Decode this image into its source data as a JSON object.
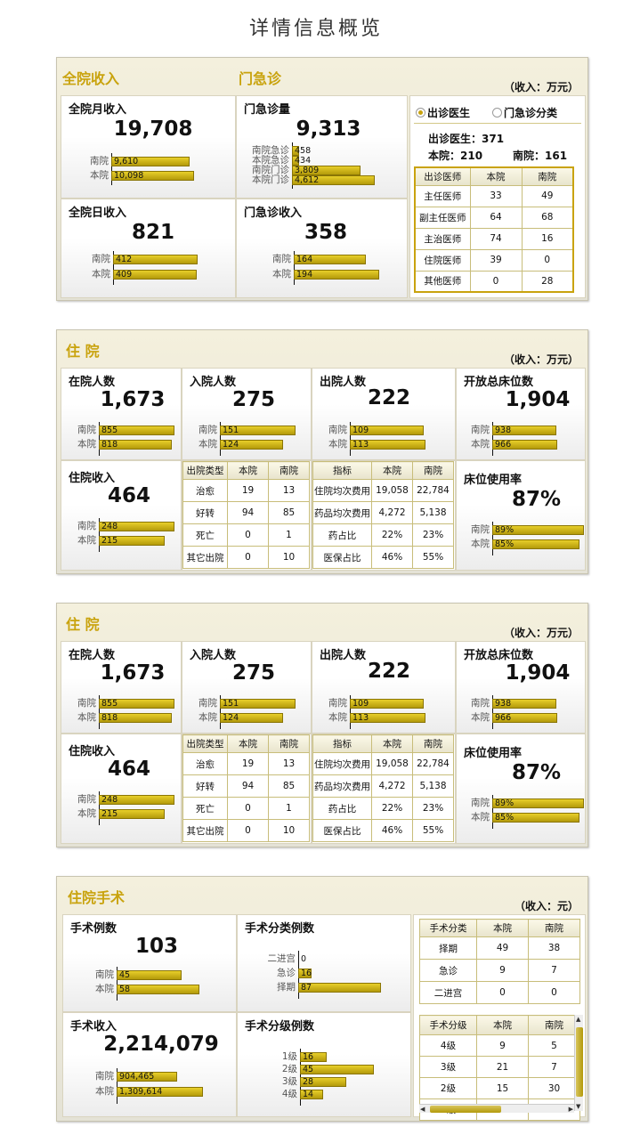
{
  "page_title": "详情信息概览",
  "sec1": {
    "title_total": "全院收入",
    "title_emergency": "门急诊",
    "unit": "（收入：万元）",
    "monthly": {
      "label": "全院月收入",
      "value": "19,708",
      "bars": [
        {
          "name": "南院",
          "value": "9,610",
          "ratio": 0.88
        },
        {
          "name": "本院",
          "value": "10,098",
          "ratio": 0.93
        }
      ]
    },
    "visits": {
      "label": "门急诊量",
      "value": "9,313",
      "bars": [
        {
          "name": "南院急诊",
          "value": "458",
          "ratio": 0.08
        },
        {
          "name": "本院急诊",
          "value": "434",
          "ratio": 0.08
        },
        {
          "name": "南院门诊",
          "value": "3,809",
          "ratio": 0.82
        },
        {
          "name": "本院门诊",
          "value": "4,612",
          "ratio": 0.99
        }
      ]
    },
    "daily": {
      "label": "全院日收入",
      "value": "821",
      "bars": [
        {
          "name": "南院",
          "value": "412",
          "ratio": 0.99
        },
        {
          "name": "本院",
          "value": "409",
          "ratio": 0.98
        }
      ]
    },
    "em_income": {
      "label": "门急诊收入",
      "value": "358",
      "bars": [
        {
          "name": "南院",
          "value": "164",
          "ratio": 0.83
        },
        {
          "name": "本院",
          "value": "194",
          "ratio": 0.98
        }
      ]
    },
    "radio1": "出诊医生",
    "radio2": "门急诊分类",
    "doctor_total": "出诊医生：371",
    "doctor_ben": "本院：210",
    "doctor_nan": "南院：161",
    "doctor_table": {
      "headers": [
        "出诊医师",
        "本院",
        "南院"
      ],
      "rows": [
        [
          "主任医师",
          "33",
          "49"
        ],
        [
          "副主任医师",
          "64",
          "68"
        ],
        [
          "主治医师",
          "74",
          "16"
        ],
        [
          "住院医师",
          "39",
          "0"
        ],
        [
          "其他医师",
          "0",
          "28"
        ]
      ]
    }
  },
  "inpatient_a": {
    "title": "住 院",
    "unit": "（收入：万元）",
    "in_hospital": {
      "label": "在院人数",
      "value": "1,673",
      "bars": [
        {
          "name": "南院",
          "value": "855",
          "ratio": 0.99
        },
        {
          "name": "本院",
          "value": "818",
          "ratio": 0.95
        }
      ]
    },
    "admitted": {
      "label": "入院人数",
      "value": "275",
      "bars": [
        {
          "name": "南院",
          "value": "151",
          "ratio": 0.99
        },
        {
          "name": "本院",
          "value": "124",
          "ratio": 0.82
        }
      ]
    },
    "discharged": {
      "label": "出院人数",
      "value": "222",
      "bars": [
        {
          "name": "南院",
          "value": "109",
          "ratio": 0.96
        },
        {
          "name": "本院",
          "value": "113",
          "ratio": 0.99
        }
      ]
    },
    "beds": {
      "label": "开放总床位数",
      "value": "1,904",
      "bars": [
        {
          "name": "南院",
          "value": "938",
          "ratio": 0.97
        },
        {
          "name": "本院",
          "value": "966",
          "ratio": 0.99
        }
      ]
    },
    "income": {
      "label": "住院收入",
      "value": "464",
      "bars": [
        {
          "name": "南院",
          "value": "248",
          "ratio": 0.99
        },
        {
          "name": "本院",
          "value": "215",
          "ratio": 0.86
        }
      ]
    },
    "usage": {
      "label": "床位使用率",
      "value": "87%",
      "bars": [
        {
          "name": "南院",
          "value": "89%",
          "ratio": 0.99
        },
        {
          "name": "本院",
          "value": "85%",
          "ratio": 0.94
        }
      ]
    },
    "discharge_table": {
      "headers": [
        "出院类型",
        "本院",
        "南院"
      ],
      "rows": [
        [
          "治愈",
          "19",
          "13"
        ],
        [
          "好转",
          "94",
          "85"
        ],
        [
          "死亡",
          "0",
          "1"
        ],
        [
          "其它出院",
          "0",
          "10"
        ]
      ]
    },
    "index_table": {
      "headers": [
        "指标",
        "本院",
        "南院"
      ],
      "rows": [
        [
          "住院均次费用",
          "19,058",
          "22,784"
        ],
        [
          "药品均次费用",
          "4,272",
          "5,138"
        ],
        [
          "药占比",
          "22%",
          "23%"
        ],
        [
          "医保占比",
          "46%",
          "55%"
        ]
      ]
    }
  },
  "inpatient_b": {
    "title": "住 院",
    "unit": "（收入：万元）",
    "in_hospital": {
      "label": "在院人数",
      "value": "1,673",
      "bars": [
        {
          "name": "南院",
          "value": "855",
          "ratio": 0.99
        },
        {
          "name": "本院",
          "value": "818",
          "ratio": 0.95
        }
      ]
    },
    "admitted": {
      "label": "入院人数",
      "value": "275",
      "bars": [
        {
          "name": "南院",
          "value": "151",
          "ratio": 0.99
        },
        {
          "name": "本院",
          "value": "124",
          "ratio": 0.82
        }
      ]
    },
    "discharged": {
      "label": "出院人数",
      "value": "222",
      "bars": [
        {
          "name": "南院",
          "value": "109",
          "ratio": 0.96
        },
        {
          "name": "本院",
          "value": "113",
          "ratio": 0.99
        }
      ]
    },
    "beds": {
      "label": "开放总床位数",
      "value": "1,904",
      "bars": [
        {
          "name": "南院",
          "value": "938",
          "ratio": 0.97
        },
        {
          "name": "本院",
          "value": "966",
          "ratio": 0.99
        }
      ]
    },
    "income": {
      "label": "住院收入",
      "value": "464",
      "bars": [
        {
          "name": "南院",
          "value": "248",
          "ratio": 0.99
        },
        {
          "name": "本院",
          "value": "215",
          "ratio": 0.86
        }
      ]
    },
    "usage": {
      "label": "床位使用率",
      "value": "87%",
      "bars": [
        {
          "name": "南院",
          "value": "89%",
          "ratio": 0.99
        },
        {
          "name": "本院",
          "value": "85%",
          "ratio": 0.94
        }
      ]
    },
    "discharge_table": {
      "headers": [
        "出院类型",
        "本院",
        "南院"
      ],
      "rows": [
        [
          "治愈",
          "19",
          "13"
        ],
        [
          "好转",
          "94",
          "85"
        ],
        [
          "死亡",
          "0",
          "1"
        ],
        [
          "其它出院",
          "0",
          "10"
        ]
      ]
    },
    "index_table": {
      "headers": [
        "指标",
        "本院",
        "南院"
      ],
      "rows": [
        [
          "住院均次费用",
          "19,058",
          "22,784"
        ],
        [
          "药品均次费用",
          "4,272",
          "5,138"
        ],
        [
          "药占比",
          "22%",
          "23%"
        ],
        [
          "医保占比",
          "46%",
          "55%"
        ]
      ]
    }
  },
  "surgery": {
    "title": "住院手术",
    "unit": "（收入：元）",
    "count": {
      "label": "手术例数",
      "value": "103",
      "bars": [
        {
          "name": "南院",
          "value": "45",
          "ratio": 0.78
        },
        {
          "name": "本院",
          "value": "58",
          "ratio": 0.99
        }
      ]
    },
    "category": {
      "label": "手术分类例数",
      "bars": [
        {
          "name": "二进宫",
          "value": "0",
          "ratio": 0.0
        },
        {
          "name": "急诊",
          "value": "16",
          "ratio": 0.16
        },
        {
          "name": "择期",
          "value": "87",
          "ratio": 0.99
        }
      ]
    },
    "income": {
      "label": "手术收入",
      "value": "2,214,079",
      "bars": [
        {
          "name": "南院",
          "value": "904,465",
          "ratio": 0.69
        },
        {
          "name": "本院",
          "value": "1,309,614",
          "ratio": 0.99
        }
      ]
    },
    "level": {
      "label": "手术分级例数",
      "bars": [
        {
          "name": "1级",
          "value": "16",
          "ratio": 0.36
        },
        {
          "name": "2级",
          "value": "45",
          "ratio": 0.99
        },
        {
          "name": "3级",
          "value": "28",
          "ratio": 0.62
        },
        {
          "name": "4级",
          "value": "14",
          "ratio": 0.31
        }
      ]
    },
    "category_table": {
      "headers": [
        "手术分类",
        "本院",
        "南院"
      ],
      "rows": [
        [
          "择期",
          "49",
          "38"
        ],
        [
          "急诊",
          "9",
          "7"
        ],
        [
          "二进宫",
          "0",
          "0"
        ]
      ]
    },
    "level_table": {
      "headers": [
        "手术分级",
        "本院",
        "南院"
      ],
      "rows": [
        [
          "4级",
          "9",
          "5"
        ],
        [
          "3级",
          "21",
          "7"
        ],
        [
          "2级",
          "15",
          "30"
        ],
        [
          "1级",
          "13",
          "3"
        ]
      ]
    }
  }
}
